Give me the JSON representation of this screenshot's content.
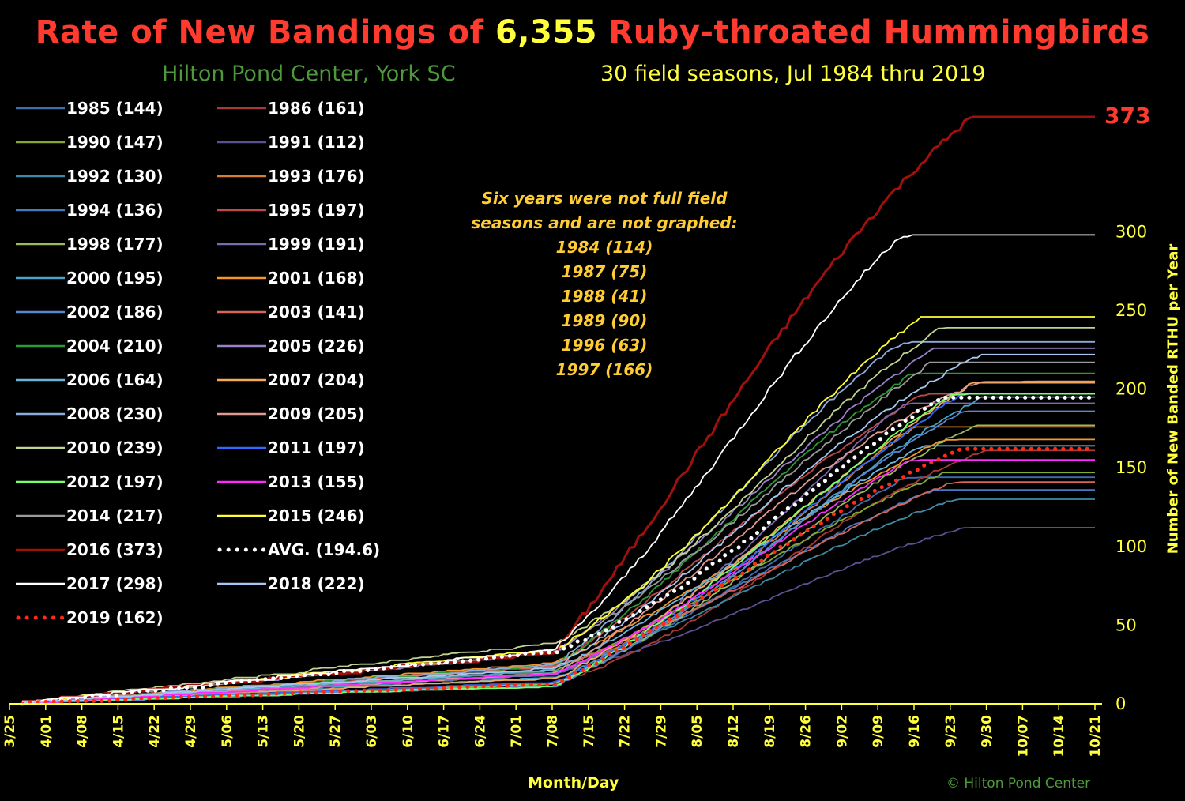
{
  "title": {
    "part1": "Rate of New Bandings of ",
    "highlight": "6,355",
    "part2": " Ruby-throated Hummingbirds"
  },
  "subtitle_left": "Hilton Pond Center, York SC",
  "subtitle_right": "30 field seasons, Jul 1984 thru 2019",
  "note_lines": [
    "Six years were not full field",
    "seasons and are not graphed:",
    "1984 (114)",
    "1987 (75)",
    "1988 (41)",
    "1989 (90)",
    "1996 (63)",
    "1997 (166)"
  ],
  "y_axis_label": "Number of New Banded RTHU per Year",
  "x_axis_label": "Month/Day",
  "copyright": "© Hilton Pond Center",
  "end_label": "373",
  "colors": {
    "title": "#ff3b2f",
    "highlight": "#ffff3c",
    "subtitle_left": "#4e9a3a",
    "axis": "#ffff3c",
    "note": "#ffcc33"
  },
  "chart_data": {
    "type": "line",
    "x_tick_labels": [
      "3/25",
      "4/01",
      "4/08",
      "4/15",
      "4/22",
      "4/29",
      "5/06",
      "5/13",
      "5/20",
      "5/27",
      "6/03",
      "6/10",
      "6/17",
      "6/24",
      "7/01",
      "7/08",
      "7/15",
      "7/22",
      "7/29",
      "8/05",
      "8/12",
      "8/19",
      "8/26",
      "9/02",
      "9/09",
      "9/16",
      "9/23",
      "9/30",
      "10/07",
      "10/14",
      "10/21"
    ],
    "y_ticks": [
      0,
      50,
      100,
      150,
      200,
      250,
      300
    ],
    "ylim": [
      0,
      373
    ],
    "grid": false,
    "legend_position": "left",
    "series": [
      {
        "name": "1985 (144)",
        "total": 144,
        "color": "#3d6fb0"
      },
      {
        "name": "1986 (161)",
        "total": 161,
        "color": "#a83a36"
      },
      {
        "name": "1990 (147)",
        "total": 147,
        "color": "#86a832"
      },
      {
        "name": "1991 (112)",
        "total": 112,
        "color": "#5e4f92"
      },
      {
        "name": "1992 (130)",
        "total": 130,
        "color": "#3e8aa6"
      },
      {
        "name": "1993 (176)",
        "total": 176,
        "color": "#d9802e"
      },
      {
        "name": "1994 (136)",
        "total": 136,
        "color": "#4a78c0"
      },
      {
        "name": "1995 (197)",
        "total": 197,
        "color": "#c04a46"
      },
      {
        "name": "1998 (177)",
        "total": 177,
        "color": "#9cba5a"
      },
      {
        "name": "1999 (191)",
        "total": 191,
        "color": "#7a6aae"
      },
      {
        "name": "2000 (195)",
        "total": 195,
        "color": "#4aa2c6"
      },
      {
        "name": "2001 (168)",
        "total": 168,
        "color": "#f2962f"
      },
      {
        "name": "2002 (186)",
        "total": 186,
        "color": "#5888d0"
      },
      {
        "name": "2003 (141)",
        "total": 141,
        "color": "#d8665a"
      },
      {
        "name": "2004 (210)",
        "total": 210,
        "color": "#2e9a36"
      },
      {
        "name": "2005 (226)",
        "total": 226,
        "color": "#9a82c8"
      },
      {
        "name": "2006 (164)",
        "total": 164,
        "color": "#6ab6da"
      },
      {
        "name": "2007 (204)",
        "total": 204,
        "color": "#f4a860"
      },
      {
        "name": "2008 (230)",
        "total": 230,
        "color": "#8cacde"
      },
      {
        "name": "2009 (205)",
        "total": 205,
        "color": "#e09a94"
      },
      {
        "name": "2010 (239)",
        "total": 239,
        "color": "#c0d492"
      },
      {
        "name": "2011 (197)",
        "total": 197,
        "color": "#2e6aff"
      },
      {
        "name": "2012 (197)",
        "total": 197,
        "color": "#7aff6a"
      },
      {
        "name": "2013 (155)",
        "total": 155,
        "color": "#ff2aff"
      },
      {
        "name": "2014 (217)",
        "total": 217,
        "color": "#9a9a9a"
      },
      {
        "name": "2015 (246)",
        "total": 246,
        "color": "#ffff33"
      },
      {
        "name": "2016 (373)",
        "total": 373,
        "color": "#a0100c"
      },
      {
        "name": "AVG. (194.6)",
        "total": 194.6,
        "color": "#ffffff",
        "dotted": true
      },
      {
        "name": "2017 (298)",
        "total": 298,
        "color": "#ffffff"
      },
      {
        "name": "2018 (222)",
        "total": 222,
        "color": "#a6c8f0"
      },
      {
        "name": "2019 (162)",
        "total": 162,
        "color": "#ff2a1a",
        "dotted": true
      }
    ]
  }
}
